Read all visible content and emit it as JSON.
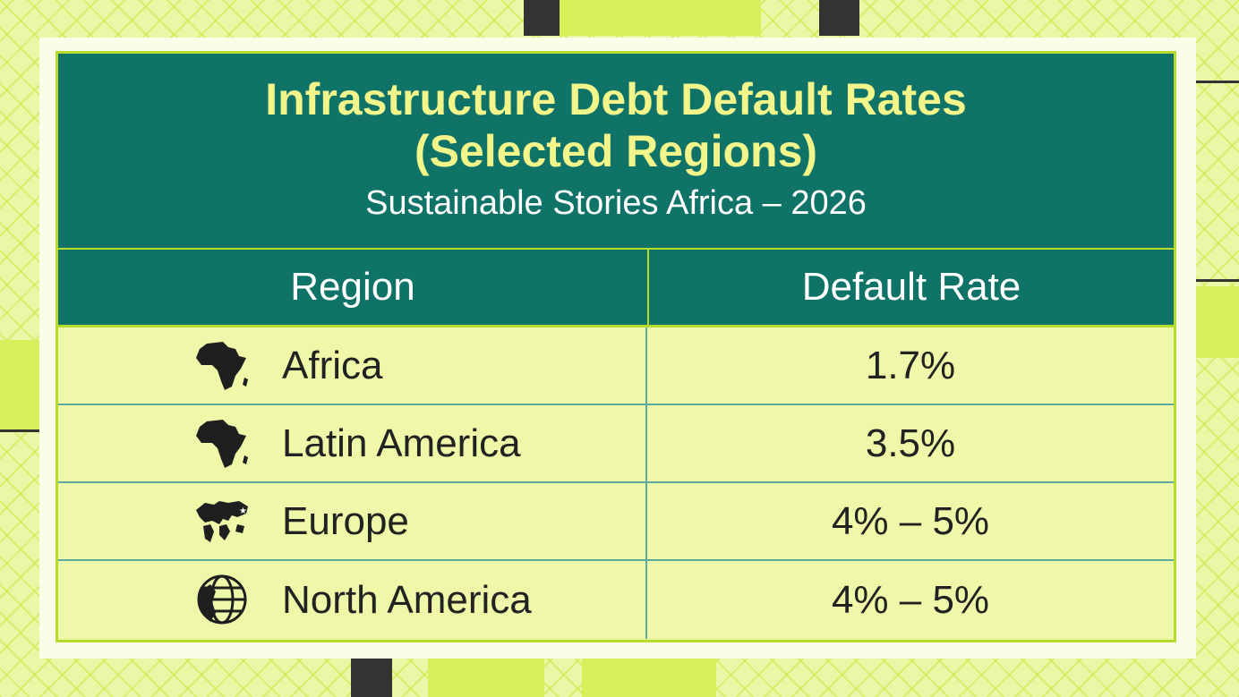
{
  "header": {
    "title_line1": "Infrastructure Debt Default Rates",
    "title_line2": "(Selected Regions)",
    "subtitle": "Sustainable Stories Africa – 2026"
  },
  "table": {
    "columns": [
      "Region",
      "Default Rate"
    ],
    "rows": [
      {
        "region": "Africa",
        "rate": "1.7%",
        "icon": "africa-icon"
      },
      {
        "region": "Latin America",
        "rate": "3.5%",
        "icon": "africa-icon"
      },
      {
        "region": "Europe",
        "rate": "4% – 5%",
        "icon": "world-map-icon"
      },
      {
        "region": "North America",
        "rate": "4% – 5%",
        "icon": "globe-icon"
      }
    ]
  },
  "colors": {
    "teal": "#0f7368",
    "lime": "#b5dc2c",
    "title_yellow": "#f2f58a",
    "row_bg": "#eef8a8"
  }
}
